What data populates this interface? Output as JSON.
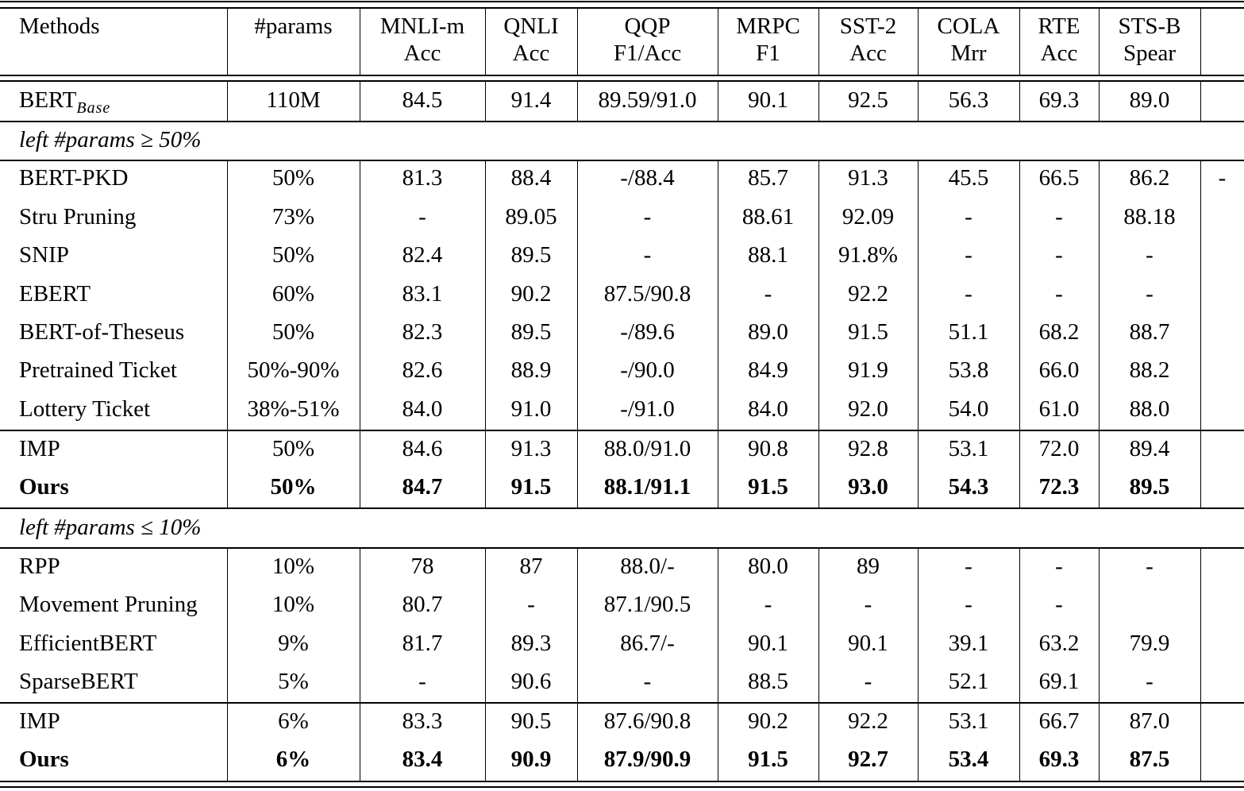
{
  "table": {
    "columns": [
      {
        "name": "Methods",
        "metric": ""
      },
      {
        "name": "#params",
        "metric": ""
      },
      {
        "name": "MNLI-m",
        "metric": "Acc"
      },
      {
        "name": "QNLI",
        "metric": "Acc"
      },
      {
        "name": "QQP",
        "metric": "F1/Acc"
      },
      {
        "name": "MRPC",
        "metric": "F1"
      },
      {
        "name": "SST-2",
        "metric": "Acc"
      },
      {
        "name": "COLA",
        "metric": "Mrr"
      },
      {
        "name": "RTE",
        "metric": "Acc"
      },
      {
        "name": "STS-B",
        "metric": "Spear"
      },
      {
        "name": "",
        "metric": ""
      }
    ],
    "baseline": {
      "method": "BERT",
      "method_sub": "Base",
      "cells": [
        "110M",
        "84.5",
        "91.4",
        "89.59/91.0",
        "90.1",
        "92.5",
        "56.3",
        "69.3",
        "89.0",
        ""
      ]
    },
    "sections": [
      {
        "label": "left #params ≥ 50%",
        "rows": [
          {
            "method": "BERT-PKD",
            "bold": false,
            "cells": [
              "50%",
              "81.3",
              "88.4",
              "-/88.4",
              "85.7",
              "91.3",
              "45.5",
              "66.5",
              "86.2",
              "-"
            ]
          },
          {
            "method": "Stru Pruning",
            "bold": false,
            "cells": [
              "73%",
              "-",
              "89.05",
              "-",
              "88.61",
              "92.09",
              "-",
              "-",
              "88.18",
              ""
            ]
          },
          {
            "method": "SNIP",
            "bold": false,
            "cells": [
              "50%",
              "82.4",
              "89.5",
              "-",
              "88.1",
              "91.8%",
              "-",
              "-",
              "-",
              ""
            ]
          },
          {
            "method": "EBERT",
            "bold": false,
            "cells": [
              "60%",
              "83.1",
              "90.2",
              "87.5/90.8",
              "-",
              "92.2",
              "-",
              "-",
              "-",
              ""
            ]
          },
          {
            "method": "BERT-of-Theseus",
            "bold": false,
            "cells": [
              "50%",
              "82.3",
              "89.5",
              "-/89.6",
              "89.0",
              "91.5",
              "51.1",
              "68.2",
              "88.7",
              ""
            ]
          },
          {
            "method": "Pretrained Ticket",
            "bold": false,
            "cells": [
              "50%-90%",
              "82.6",
              "88.9",
              "-/90.0",
              "84.9",
              "91.9",
              "53.8",
              "66.0",
              "88.2",
              ""
            ]
          },
          {
            "method": "Lottery Ticket",
            "bold": false,
            "cells": [
              "38%-51%",
              "84.0",
              "91.0",
              "-/91.0",
              "84.0",
              "92.0",
              "54.0",
              "61.0",
              "88.0",
              ""
            ]
          }
        ],
        "ours_block": [
          {
            "method": "IMP",
            "bold": false,
            "cells": [
              "50%",
              "84.6",
              "91.3",
              "88.0/91.0",
              "90.8",
              "92.8",
              "53.1",
              "72.0",
              "89.4",
              ""
            ]
          },
          {
            "method": "Ours",
            "bold": true,
            "cells": [
              "50%",
              "84.7",
              "91.5",
              "88.1/91.1",
              "91.5",
              "93.0",
              "54.3",
              "72.3",
              "89.5",
              ""
            ]
          }
        ]
      },
      {
        "label": "left #params ≤ 10%",
        "rows": [
          {
            "method": "RPP",
            "bold": false,
            "cells": [
              "10%",
              "78",
              "87",
              "88.0/-",
              "80.0",
              "89",
              "-",
              "-",
              "-",
              ""
            ]
          },
          {
            "method": "Movement Pruning",
            "bold": false,
            "cells": [
              "10%",
              "80.7",
              "-",
              "87.1/90.5",
              "-",
              "-",
              "-",
              "-",
              "",
              ""
            ]
          },
          {
            "method": "EfficientBERT",
            "bold": false,
            "cells": [
              "9%",
              "81.7",
              "89.3",
              "86.7/-",
              "90.1",
              "90.1",
              "39.1",
              "63.2",
              "79.9",
              ""
            ]
          },
          {
            "method": "SparseBERT",
            "bold": false,
            "cells": [
              "5%",
              "-",
              "90.6",
              "-",
              "88.5",
              "-",
              "52.1",
              "69.1",
              "-",
              ""
            ]
          }
        ],
        "ours_block": [
          {
            "method": "IMP",
            "bold": false,
            "cells": [
              "6%",
              "83.3",
              "90.5",
              "87.6/90.8",
              "90.2",
              "92.2",
              "53.1",
              "66.7",
              "87.0",
              ""
            ]
          },
          {
            "method": "Ours",
            "bold": true,
            "cells": [
              "6%",
              "83.4",
              "90.9",
              "87.9/90.9",
              "91.5",
              "92.7",
              "53.4",
              "69.3",
              "87.5",
              ""
            ]
          }
        ]
      }
    ]
  }
}
